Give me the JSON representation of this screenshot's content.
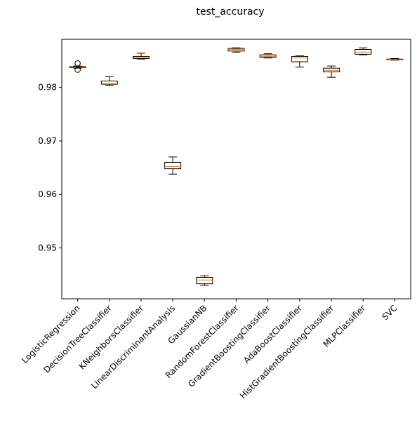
{
  "chart_data": {
    "type": "boxplot",
    "title": "test_accuracy",
    "xlabel": "",
    "ylabel": "",
    "ylim": [
      0.9405,
      0.989
    ],
    "yticks": [
      0.95,
      0.96,
      0.97,
      0.98
    ],
    "ytick_labels": [
      "0.95",
      "0.96",
      "0.97",
      "0.98"
    ],
    "grid": false,
    "colors": {
      "box": "#000000",
      "median": "#ff7f0e"
    },
    "categories": [
      "LogisticRegression",
      "DecisionTreeClassifier",
      "KNeighborsClassifier",
      "LinearDiscriminantAnalysis",
      "GaussianNB",
      "RandomForestClassifier",
      "GradientBoostingClassifier",
      "AdaBoostClassifier",
      "HistGradientBoostingClassifier",
      "MLPClassifier",
      "SVC"
    ],
    "boxes": [
      {
        "whislo": 0.9836,
        "q1": 0.9837,
        "med": 0.9838,
        "q3": 0.9839,
        "whishi": 0.984,
        "fliers": [
          0.9845,
          0.9833
        ]
      },
      {
        "whislo": 0.9804,
        "q1": 0.9806,
        "med": 0.9807,
        "q3": 0.9812,
        "whishi": 0.982,
        "fliers": []
      },
      {
        "whislo": 0.9853,
        "q1": 0.9854,
        "med": 0.9856,
        "q3": 0.9858,
        "whishi": 0.9864,
        "fliers": []
      },
      {
        "whislo": 0.9638,
        "q1": 0.9648,
        "med": 0.9652,
        "q3": 0.966,
        "whishi": 0.967,
        "fliers": []
      },
      {
        "whislo": 0.943,
        "q1": 0.9433,
        "med": 0.944,
        "q3": 0.9445,
        "whishi": 0.9448,
        "fliers": []
      },
      {
        "whislo": 0.9866,
        "q1": 0.9868,
        "med": 0.9871,
        "q3": 0.9873,
        "whishi": 0.9874,
        "fliers": []
      },
      {
        "whislo": 0.9855,
        "q1": 0.9856,
        "med": 0.9858,
        "q3": 0.9861,
        "whishi": 0.9863,
        "fliers": []
      },
      {
        "whislo": 0.9838,
        "q1": 0.9848,
        "med": 0.9855,
        "q3": 0.9858,
        "whishi": 0.9859,
        "fliers": []
      },
      {
        "whislo": 0.9819,
        "q1": 0.9829,
        "med": 0.9832,
        "q3": 0.9836,
        "whishi": 0.984,
        "fliers": []
      },
      {
        "whislo": 0.9861,
        "q1": 0.9862,
        "med": 0.9866,
        "q3": 0.9871,
        "whishi": 0.9874,
        "fliers": []
      },
      {
        "whislo": 0.9851,
        "q1": 0.9852,
        "med": 0.9852,
        "q3": 0.9853,
        "whishi": 0.9854,
        "fliers": []
      }
    ]
  }
}
